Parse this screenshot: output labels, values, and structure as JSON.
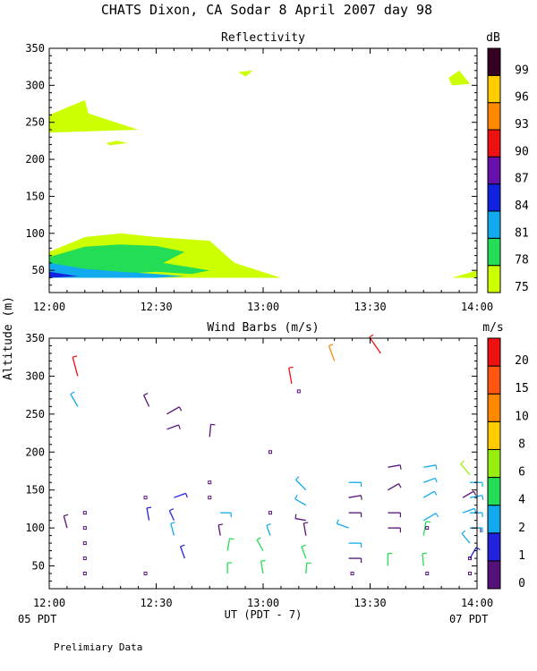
{
  "figure": {
    "title": "CHATS Dixon, CA  Sodar   8 April 2007  day  98",
    "shared_ylabel": "Altitude (m)",
    "shared_xlabel": "UT  (PDT - 7)",
    "x_start_date": "05 PDT",
    "x_end_date": "07 PDT",
    "footnote": "Prelimiary Data"
  },
  "chart_data": [
    {
      "type": "area",
      "title": "Reflectivity",
      "ylabel": "Altitude (m)",
      "xlabel": "UT  (PDT - 7)",
      "xlim": [
        0,
        120
      ],
      "ylim": [
        20,
        350
      ],
      "xticks": [
        0,
        30,
        60,
        90,
        120
      ],
      "xticklabels": [
        "12:00",
        "12:30",
        "13:00",
        "13:30",
        "14:00"
      ],
      "yticks": [
        50,
        100,
        150,
        200,
        250,
        300,
        350
      ],
      "colorbar": {
        "unit": "dB",
        "labels": [
          "75",
          "78",
          "81",
          "84",
          "87",
          "90",
          "93",
          "96",
          "99"
        ],
        "colors": [
          "#ccff00",
          "#22dd55",
          "#11aaee",
          "#1122dd",
          "#6611aa",
          "#ee1111",
          "#ff8800",
          "#ffcc00",
          "#330022"
        ]
      },
      "regions": [
        {
          "level": 75,
          "color": "#ccff00",
          "points": [
            [
              0,
              260
            ],
            [
              10,
              280
            ],
            [
              11,
              262
            ],
            [
              25,
              240
            ],
            [
              0,
              236
            ]
          ]
        },
        {
          "level": 75,
          "color": "#ccff00",
          "points": [
            [
              16,
              222
            ],
            [
              19,
              225
            ],
            [
              22,
              222
            ],
            [
              17,
              219
            ]
          ]
        },
        {
          "level": 75,
          "color": "#ccff00",
          "points": [
            [
              53,
              318
            ],
            [
              57,
              320
            ],
            [
              56,
              315
            ],
            [
              55,
              312
            ]
          ]
        },
        {
          "level": 75,
          "color": "#ccff00",
          "points": [
            [
              112,
              310
            ],
            [
              115,
              320
            ],
            [
              118,
              302
            ],
            [
              113,
              300
            ]
          ]
        },
        {
          "level": 75,
          "color": "#ccff00",
          "points": [
            [
              0,
              75
            ],
            [
              10,
              95
            ],
            [
              20,
              100
            ],
            [
              30,
              95
            ],
            [
              45,
              90
            ],
            [
              52,
              60
            ],
            [
              65,
              40
            ],
            [
              0,
              40
            ]
          ]
        },
        {
          "level": 75,
          "color": "#ccff00",
          "points": [
            [
              113,
              40
            ],
            [
              120,
              50
            ],
            [
              120,
              40
            ]
          ]
        },
        {
          "level": 78,
          "color": "#22dd55",
          "points": [
            [
              0,
              68
            ],
            [
              10,
              82
            ],
            [
              20,
              85
            ],
            [
              30,
              83
            ],
            [
              38,
              75
            ],
            [
              32,
              60
            ],
            [
              45,
              50
            ],
            [
              40,
              45
            ],
            [
              30,
              48
            ],
            [
              20,
              45
            ],
            [
              0,
              50
            ]
          ]
        },
        {
          "level": 81,
          "color": "#11aaee",
          "points": [
            [
              0,
              60
            ],
            [
              10,
              52
            ],
            [
              20,
              48
            ],
            [
              30,
              45
            ],
            [
              38,
              42
            ],
            [
              30,
              40
            ],
            [
              0,
              40
            ]
          ]
        },
        {
          "level": 84,
          "color": "#1122dd",
          "points": [
            [
              0,
              48
            ],
            [
              8,
              42
            ],
            [
              0,
              40
            ]
          ]
        }
      ]
    },
    {
      "type": "scatter",
      "title": "Wind Barbs (m/s)",
      "ylabel": "Altitude (m)",
      "xlabel": "UT  (PDT - 7)",
      "xlim": [
        0,
        120
      ],
      "ylim": [
        20,
        350
      ],
      "xticks": [
        0,
        30,
        60,
        90,
        120
      ],
      "xticklabels": [
        "12:00",
        "12:30",
        "13:00",
        "13:30",
        "14:00"
      ],
      "yticks": [
        50,
        100,
        150,
        200,
        250,
        300,
        350
      ],
      "colorbar": {
        "unit": "m/s",
        "labels": [
          "0",
          "1",
          "2",
          "4",
          "6",
          "8",
          "10",
          "15",
          "20"
        ],
        "colors": [
          "#551177",
          "#2222dd",
          "#11aaee",
          "#22dd55",
          "#99ee11",
          "#ffcc00",
          "#ff8800",
          "#ff5511",
          "#ee1111"
        ]
      },
      "barbs": [
        {
          "t": 8,
          "alt": 300,
          "angle": -15,
          "len": 22,
          "color": "#ee1111"
        },
        {
          "t": 8,
          "alt": 260,
          "angle": -30,
          "len": 16,
          "color": "#11aaee"
        },
        {
          "t": 28,
          "alt": 260,
          "angle": -25,
          "len": 14,
          "color": "#551177"
        },
        {
          "t": 33,
          "alt": 250,
          "angle": 60,
          "len": 16,
          "color": "#551177"
        },
        {
          "t": 33,
          "alt": 230,
          "angle": 70,
          "len": 14,
          "color": "#551177"
        },
        {
          "t": 45,
          "alt": 220,
          "angle": 5,
          "len": 14,
          "color": "#551177"
        },
        {
          "t": 68,
          "alt": 290,
          "angle": -10,
          "len": 18,
          "color": "#ee1111"
        },
        {
          "t": 80,
          "alt": 320,
          "angle": -20,
          "len": 18,
          "color": "#ff8800"
        },
        {
          "t": 93,
          "alt": 330,
          "angle": -35,
          "len": 22,
          "color": "#ee1111"
        },
        {
          "t": 5,
          "alt": 100,
          "angle": -15,
          "len": 14,
          "color": "#551177"
        },
        {
          "t": 28,
          "alt": 110,
          "angle": -10,
          "len": 14,
          "color": "#2222dd"
        },
        {
          "t": 35,
          "alt": 140,
          "angle": 70,
          "len": 14,
          "color": "#2222dd"
        },
        {
          "t": 35,
          "alt": 110,
          "angle": -25,
          "len": 12,
          "color": "#2222dd"
        },
        {
          "t": 35,
          "alt": 90,
          "angle": -15,
          "len": 14,
          "color": "#11aaee"
        },
        {
          "t": 38,
          "alt": 60,
          "angle": -20,
          "len": 14,
          "color": "#2222dd"
        },
        {
          "t": 48,
          "alt": 120,
          "angle": 90,
          "len": 12,
          "color": "#11aaee"
        },
        {
          "t": 48,
          "alt": 90,
          "angle": -10,
          "len": 12,
          "color": "#551177"
        },
        {
          "t": 50,
          "alt": 70,
          "angle": 10,
          "len": 14,
          "color": "#22dd55"
        },
        {
          "t": 50,
          "alt": 40,
          "angle": 0,
          "len": 12,
          "color": "#22dd55"
        },
        {
          "t": 62,
          "alt": 90,
          "angle": -20,
          "len": 12,
          "color": "#11aaee"
        },
        {
          "t": 60,
          "alt": 70,
          "angle": -30,
          "len": 14,
          "color": "#22dd55"
        },
        {
          "t": 60,
          "alt": 40,
          "angle": -10,
          "len": 14,
          "color": "#22dd55"
        },
        {
          "t": 72,
          "alt": 150,
          "angle": -45,
          "len": 16,
          "color": "#11aaee"
        },
        {
          "t": 72,
          "alt": 130,
          "angle": -60,
          "len": 14,
          "color": "#11aaee"
        },
        {
          "t": 72,
          "alt": 110,
          "angle": -80,
          "len": 12,
          "color": "#551177"
        },
        {
          "t": 72,
          "alt": 90,
          "angle": -10,
          "len": 14,
          "color": "#551177"
        },
        {
          "t": 72,
          "alt": 60,
          "angle": -20,
          "len": 14,
          "color": "#22dd55"
        },
        {
          "t": 72,
          "alt": 40,
          "angle": 5,
          "len": 12,
          "color": "#22dd55"
        },
        {
          "t": 84,
          "alt": 160,
          "angle": 90,
          "len": 14,
          "color": "#11aaee"
        },
        {
          "t": 84,
          "alt": 140,
          "angle": 80,
          "len": 14,
          "color": "#551177"
        },
        {
          "t": 84,
          "alt": 120,
          "angle": 90,
          "len": 14,
          "color": "#551177"
        },
        {
          "t": 84,
          "alt": 100,
          "angle": -70,
          "len": 14,
          "color": "#11aaee"
        },
        {
          "t": 84,
          "alt": 80,
          "angle": 90,
          "len": 14,
          "color": "#11aaee"
        },
        {
          "t": 84,
          "alt": 60,
          "angle": 90,
          "len": 14,
          "color": "#551177"
        },
        {
          "t": 95,
          "alt": 180,
          "angle": 80,
          "len": 14,
          "color": "#551177"
        },
        {
          "t": 95,
          "alt": 150,
          "angle": 60,
          "len": 14,
          "color": "#551177"
        },
        {
          "t": 95,
          "alt": 120,
          "angle": 90,
          "len": 14,
          "color": "#551177"
        },
        {
          "t": 95,
          "alt": 100,
          "angle": 90,
          "len": 14,
          "color": "#551177"
        },
        {
          "t": 95,
          "alt": 50,
          "angle": 0,
          "len": 14,
          "color": "#22dd55"
        },
        {
          "t": 105,
          "alt": 180,
          "angle": 80,
          "len": 14,
          "color": "#11aaee"
        },
        {
          "t": 105,
          "alt": 160,
          "angle": 70,
          "len": 14,
          "color": "#11aaee"
        },
        {
          "t": 105,
          "alt": 140,
          "angle": 60,
          "len": 14,
          "color": "#11aaee"
        },
        {
          "t": 105,
          "alt": 110,
          "angle": 60,
          "len": 16,
          "color": "#11aaee"
        },
        {
          "t": 105,
          "alt": 90,
          "angle": 10,
          "len": 16,
          "color": "#22dd55"
        },
        {
          "t": 105,
          "alt": 50,
          "angle": -5,
          "len": 14,
          "color": "#22dd55"
        },
        {
          "t": 116,
          "alt": 140,
          "angle": 60,
          "len": 14,
          "color": "#551177"
        },
        {
          "t": 116,
          "alt": 120,
          "angle": 70,
          "len": 14,
          "color": "#11aaee"
        },
        {
          "t": 118,
          "alt": 100,
          "angle": 90,
          "len": 12,
          "color": "#551177"
        },
        {
          "t": 125,
          "alt": 160,
          "angle": 90,
          "len": 14,
          "color": "#11aaee"
        },
        {
          "t": 125,
          "alt": 140,
          "angle": 80,
          "len": 14,
          "color": "#11aaee"
        },
        {
          "t": 125,
          "alt": 120,
          "angle": 90,
          "len": 14,
          "color": "#11aaee"
        },
        {
          "t": 125,
          "alt": 100,
          "angle": 90,
          "len": 14,
          "color": "#11aaee"
        },
        {
          "t": 125,
          "alt": 80,
          "angle": -40,
          "len": 14,
          "color": "#11aaee"
        },
        {
          "t": 125,
          "alt": 60,
          "angle": 30,
          "len": 14,
          "color": "#2222dd"
        },
        {
          "t": 127,
          "alt": 170,
          "angle": -40,
          "len": 16,
          "color": "#99ee11"
        }
      ],
      "calm_points": [
        {
          "t": 10,
          "alt": 120
        },
        {
          "t": 10,
          "alt": 100
        },
        {
          "t": 10,
          "alt": 80
        },
        {
          "t": 10,
          "alt": 60
        },
        {
          "t": 10,
          "alt": 40
        },
        {
          "t": 27,
          "alt": 140
        },
        {
          "t": 27,
          "alt": 40
        },
        {
          "t": 45,
          "alt": 160
        },
        {
          "t": 45,
          "alt": 140
        },
        {
          "t": 62,
          "alt": 200
        },
        {
          "t": 62,
          "alt": 120
        },
        {
          "t": 70,
          "alt": 280
        },
        {
          "t": 85,
          "alt": 40
        },
        {
          "t": 106,
          "alt": 100
        },
        {
          "t": 106,
          "alt": 40
        },
        {
          "t": 118,
          "alt": 40
        },
        {
          "t": 125,
          "alt": 60
        }
      ]
    }
  ]
}
